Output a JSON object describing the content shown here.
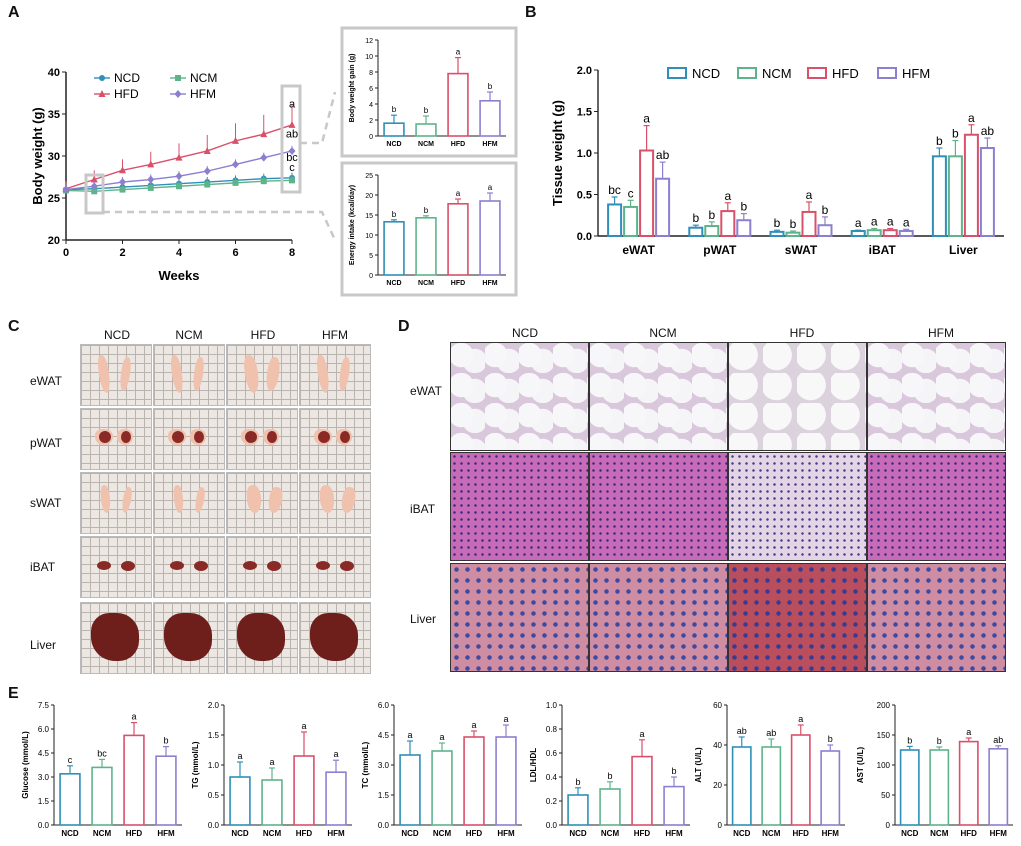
{
  "panels": {
    "A": "A",
    "B": "B",
    "C": "C",
    "D": "D",
    "E": "E"
  },
  "groups": [
    "NCD",
    "NCM",
    "HFD",
    "HFM"
  ],
  "colors": {
    "NCD": "#2f8fb8",
    "NCM": "#5db48a",
    "HFD": "#d9506a",
    "HFM": "#8c7fd0"
  },
  "chart_data": [
    {
      "id": "A-line",
      "type": "line",
      "xlabel": "Weeks",
      "ylabel": "Body weight (g)",
      "xlim": [
        0,
        8
      ],
      "ylim": [
        20,
        40
      ],
      "xticks": [
        "0",
        "2",
        "4",
        "6",
        "8"
      ],
      "yticks": [
        "20",
        "25",
        "30",
        "35",
        "40"
      ],
      "x": [
        0,
        1,
        2,
        3,
        4,
        5,
        6,
        7,
        8
      ],
      "series": [
        {
          "name": "NCD",
          "values": [
            26.0,
            26.1,
            26.3,
            26.5,
            26.7,
            26.9,
            27.1,
            27.3,
            27.4
          ],
          "end_label": "c"
        },
        {
          "name": "NCM",
          "values": [
            25.9,
            25.8,
            26.0,
            26.2,
            26.4,
            26.6,
            26.8,
            27.0,
            27.1
          ],
          "end_label": ""
        },
        {
          "name": "HFD",
          "values": [
            26.1,
            27.2,
            28.3,
            29.0,
            29.8,
            30.6,
            31.8,
            32.6,
            33.7
          ],
          "end_label": "a"
        },
        {
          "name": "HFM",
          "values": [
            26.0,
            26.4,
            26.9,
            27.2,
            27.6,
            28.2,
            29.0,
            29.8,
            30.6
          ],
          "end_label": "bc"
        }
      ],
      "extra_label": "ab"
    },
    {
      "id": "A-gain",
      "type": "bar",
      "ylabel": "Body weight gain (g)",
      "ylim": [
        0,
        12
      ],
      "yticks": [
        "0",
        "2",
        "4",
        "6",
        "8",
        "10",
        "12"
      ],
      "categories": [
        "NCD",
        "NCM",
        "HFD",
        "HFM"
      ],
      "values": [
        1.6,
        1.5,
        7.8,
        4.4
      ],
      "err": [
        1.0,
        1.0,
        2.0,
        1.1
      ],
      "labels": [
        "b",
        "b",
        "a",
        "b"
      ]
    },
    {
      "id": "A-energy",
      "type": "bar",
      "ylabel": "Energy intake (kcal/day)",
      "ylim": [
        0,
        25
      ],
      "yticks": [
        "0",
        "5",
        "10",
        "15",
        "20",
        "25"
      ],
      "categories": [
        "NCD",
        "NCM",
        "HFD",
        "HFM"
      ],
      "values": [
        13.3,
        14.3,
        17.8,
        18.5
      ],
      "err": [
        0.5,
        0.5,
        1.2,
        2.0
      ],
      "labels": [
        "b",
        "b",
        "a",
        "a"
      ]
    },
    {
      "id": "B",
      "type": "bar",
      "ylabel": "Tissue weight (g)",
      "ylim": [
        0,
        2.0
      ],
      "yticks": [
        "0.0",
        "0.5",
        "1.0",
        "1.5",
        "2.0"
      ],
      "categories": [
        "eWAT",
        "pWAT",
        "sWAT",
        "iBAT",
        "Liver"
      ],
      "series": [
        {
          "name": "NCD",
          "values": [
            0.38,
            0.1,
            0.05,
            0.06,
            0.96
          ],
          "err": [
            0.09,
            0.03,
            0.02,
            0.01,
            0.1
          ],
          "labels": [
            "bc",
            "b",
            "b",
            "a",
            "b"
          ]
        },
        {
          "name": "NCM",
          "values": [
            0.35,
            0.12,
            0.04,
            0.07,
            0.96
          ],
          "err": [
            0.08,
            0.05,
            0.02,
            0.02,
            0.19
          ],
          "labels": [
            "c",
            "b",
            "b",
            "a",
            "b"
          ]
        },
        {
          "name": "HFD",
          "values": [
            1.03,
            0.3,
            0.29,
            0.07,
            1.22
          ],
          "err": [
            0.3,
            0.1,
            0.12,
            0.02,
            0.12
          ],
          "labels": [
            "a",
            "a",
            "a",
            "a",
            "a"
          ]
        },
        {
          "name": "HFM",
          "values": [
            0.69,
            0.19,
            0.13,
            0.06,
            1.06
          ],
          "err": [
            0.2,
            0.08,
            0.1,
            0.02,
            0.12
          ],
          "labels": [
            "ab",
            "b",
            "b",
            "a",
            "ab"
          ]
        }
      ]
    },
    {
      "id": "E1",
      "type": "bar",
      "ylabel": "Glucose (mmol/L)",
      "ylim": [
        0,
        7.5
      ],
      "yticks": [
        "0.0",
        "1.5",
        "3.0",
        "4.5",
        "6.0",
        "7.5"
      ],
      "categories": [
        "NCD",
        "NCM",
        "HFD",
        "HFM"
      ],
      "values": [
        3.2,
        3.6,
        5.6,
        4.3
      ],
      "err": [
        0.5,
        0.5,
        0.8,
        0.6
      ],
      "labels": [
        "c",
        "bc",
        "a",
        "b"
      ]
    },
    {
      "id": "E2",
      "type": "bar",
      "ylabel": "TG (mmol/L)",
      "ylim": [
        0,
        2.0
      ],
      "yticks": [
        "0.0",
        "0.5",
        "1.0",
        "1.5",
        "2.0"
      ],
      "categories": [
        "NCD",
        "NCM",
        "HFD",
        "HFM"
      ],
      "values": [
        0.8,
        0.75,
        1.15,
        0.88
      ],
      "err": [
        0.25,
        0.2,
        0.4,
        0.2
      ],
      "labels": [
        "a",
        "a",
        "a",
        "a"
      ]
    },
    {
      "id": "E3",
      "type": "bar",
      "ylabel": "TC (mmol/L)",
      "ylim": [
        0,
        6.0
      ],
      "yticks": [
        "0.0",
        "1.5",
        "3.0",
        "4.5",
        "6.0"
      ],
      "categories": [
        "NCD",
        "NCM",
        "HFD",
        "HFM"
      ],
      "values": [
        3.5,
        3.7,
        4.4,
        4.4
      ],
      "err": [
        0.7,
        0.4,
        0.3,
        0.6
      ],
      "labels": [
        "a",
        "a",
        "a",
        "a"
      ]
    },
    {
      "id": "E4",
      "type": "bar",
      "ylabel": "LDL/HDL",
      "ylim": [
        0,
        1.0
      ],
      "yticks": [
        "0.0",
        "0.2",
        "0.4",
        "0.6",
        "0.8",
        "1.0"
      ],
      "categories": [
        "NCD",
        "NCM",
        "HFD",
        "HFM"
      ],
      "values": [
        0.25,
        0.3,
        0.57,
        0.32
      ],
      "err": [
        0.06,
        0.06,
        0.14,
        0.08
      ],
      "labels": [
        "b",
        "b",
        "a",
        "b"
      ]
    },
    {
      "id": "E5",
      "type": "bar",
      "ylabel": "ALT (U/L)",
      "ylim": [
        0,
        60
      ],
      "yticks": [
        "0",
        "20",
        "40",
        "60"
      ],
      "categories": [
        "NCD",
        "NCM",
        "HFD",
        "HFM"
      ],
      "values": [
        39,
        39,
        45,
        37
      ],
      "err": [
        5,
        4,
        5,
        3
      ],
      "labels": [
        "ab",
        "ab",
        "a",
        "b"
      ]
    },
    {
      "id": "E6",
      "type": "bar",
      "ylabel": "AST (U/L)",
      "ylim": [
        0,
        200
      ],
      "yticks": [
        "0",
        "50",
        "100",
        "150",
        "200"
      ],
      "categories": [
        "NCD",
        "NCM",
        "HFD",
        "HFM"
      ],
      "values": [
        125,
        125,
        139,
        127
      ],
      "err": [
        6,
        5,
        6,
        5
      ],
      "labels": [
        "b",
        "b",
        "a",
        "ab"
      ]
    }
  ],
  "photos": {
    "columns": [
      "NCD",
      "NCM",
      "HFD",
      "HFM"
    ],
    "rows": [
      "eWAT",
      "pWAT",
      "sWAT",
      "iBAT",
      "Liver"
    ]
  },
  "histology": {
    "columns": [
      "NCD",
      "NCM",
      "HFD",
      "HFM"
    ],
    "rows": [
      "eWAT",
      "iBAT",
      "Liver"
    ]
  }
}
